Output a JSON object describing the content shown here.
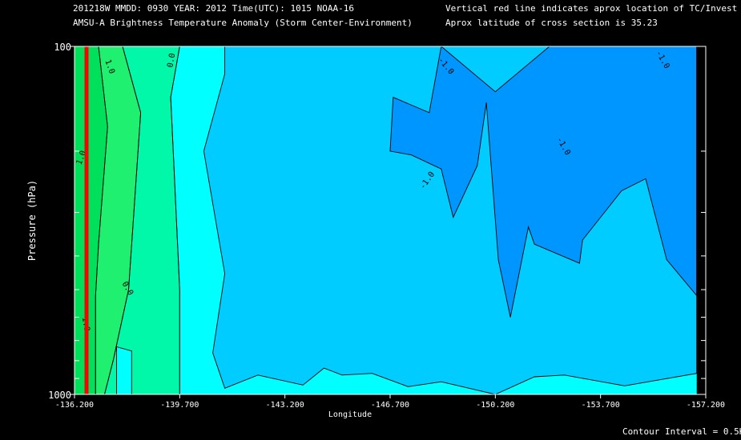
{
  "header": {
    "line1": "201218W  MMDD: 0930 YEAR: 2012 Time(UTC): 1015 NOAA-16",
    "line2": "AMSU-A Brightness Temperature Anomaly (Storm Center-Environment)",
    "note1": "Vertical red line indicates aprox location of TC/Invest",
    "note2": "Aprox latitude of cross section is 35.23"
  },
  "footer": {
    "contour_interval": "Contour Interval = 0.5K"
  },
  "chart_data": {
    "type": "contour",
    "title": "AMSU-A Brightness Temperature Anomaly (Storm Center-Environment)",
    "xlabel": "Longitude",
    "ylabel": "Pressure (hPa)",
    "xlim": [
      -136.2,
      -157.2
    ],
    "ylim": [
      1000,
      100
    ],
    "y_scale": "log",
    "x_ticks": [
      {
        "value": -136.2,
        "label": "-136.200"
      },
      {
        "value": -139.7,
        "label": "-139.700"
      },
      {
        "value": -143.2,
        "label": "-143.200"
      },
      {
        "value": -146.7,
        "label": "-146.700"
      },
      {
        "value": -150.2,
        "label": "-150.200"
      },
      {
        "value": -153.7,
        "label": "-153.700"
      },
      {
        "value": -157.2,
        "label": "-157.200"
      }
    ],
    "y_ticks": [
      {
        "value": 100,
        "label": "100"
      },
      {
        "value": 1000,
        "label": "1000"
      }
    ],
    "y_minor_ticks": [
      200,
      300,
      400,
      500,
      600,
      700,
      800,
      900
    ],
    "storm_longitude": -136.6,
    "contour_interval": 0.5,
    "contour_labels": [
      "1.0",
      "0.0",
      "-1.0"
    ],
    "contour_levels": [
      {
        "level": 1.5,
        "color": "#00e05a",
        "boundary": [
          [
            -136.2,
            1000
          ],
          [
            -136.2,
            100
          ],
          [
            -137.0,
            100
          ],
          [
            -137.3,
            170
          ],
          [
            -137.0,
            370
          ],
          [
            -136.9,
            520
          ],
          [
            -136.9,
            1000
          ]
        ]
      },
      {
        "level": 1.0,
        "color": "#20f070",
        "boundary": [
          [
            -136.9,
            1000
          ],
          [
            -136.9,
            520
          ],
          [
            -137.0,
            370
          ],
          [
            -137.3,
            170
          ],
          [
            -137.0,
            100
          ],
          [
            -137.8,
            100
          ],
          [
            -138.4,
            155
          ],
          [
            -138.0,
            500
          ],
          [
            -137.5,
            790
          ],
          [
            -137.2,
            1000
          ]
        ]
      },
      {
        "level": 0.5,
        "color": "#00f8a8",
        "boundary": [
          [
            -137.2,
            1000
          ],
          [
            -137.5,
            790
          ],
          [
            -138.0,
            500
          ],
          [
            -138.4,
            155
          ],
          [
            -137.8,
            100
          ],
          [
            -139.7,
            100
          ],
          [
            -139.4,
            140
          ],
          [
            -139.7,
            500
          ],
          [
            -139.7,
            1000
          ],
          [
            -138.1,
            1000
          ],
          [
            -138.1,
            750
          ],
          [
            -137.6,
            730
          ],
          [
            -137.6,
            1000
          ]
        ]
      },
      {
        "level": 0.0,
        "color": "#00ffff",
        "boundary": [
          [
            -139.7,
            100
          ],
          [
            -157.2,
            100
          ],
          [
            -157.2,
            1000
          ],
          [
            -139.7,
            1000
          ],
          [
            -139.7,
            500
          ],
          [
            -139.4,
            140
          ]
        ]
      },
      {
        "level": -0.5,
        "color": "#00ccff",
        "boundary": [
          [
            -141.2,
            100
          ],
          [
            -156.9,
            100
          ],
          [
            -156.9,
            870
          ],
          [
            -154.5,
            945
          ],
          [
            -152.5,
            880
          ],
          [
            -151.5,
            890
          ],
          [
            -150.2,
            1000
          ],
          [
            -148.4,
            920
          ],
          [
            -147.3,
            950
          ],
          [
            -146.1,
            870
          ],
          [
            -145.1,
            880
          ],
          [
            -144.5,
            840
          ],
          [
            -143.8,
            940
          ],
          [
            -142.3,
            880
          ],
          [
            -141.2,
            960
          ],
          [
            -140.8,
            760
          ],
          [
            -141.2,
            450
          ],
          [
            -140.5,
            200
          ],
          [
            -141.2,
            120
          ]
        ]
      },
      {
        "level": -1.0,
        "color": "#0096ff",
        "boundary": [
          [
            -146.7,
            200
          ],
          [
            -146.8,
            140
          ],
          [
            -148.0,
            155
          ],
          [
            -148.4,
            100
          ],
          [
            -150.2,
            135
          ],
          [
            -152.0,
            100
          ],
          [
            -156.9,
            100
          ],
          [
            -156.9,
            520
          ],
          [
            -155.9,
            410
          ],
          [
            -155.2,
            240
          ],
          [
            -154.4,
            260
          ],
          [
            -153.1,
            360
          ],
          [
            -153.0,
            420
          ],
          [
            -151.5,
            370
          ],
          [
            -151.3,
            330
          ],
          [
            -150.7,
            600
          ],
          [
            -150.3,
            410
          ],
          [
            -149.9,
            145
          ],
          [
            -149.6,
            220
          ],
          [
            -148.8,
            310
          ],
          [
            -148.4,
            225
          ],
          [
            -147.4,
            205
          ]
        ]
      }
    ]
  }
}
